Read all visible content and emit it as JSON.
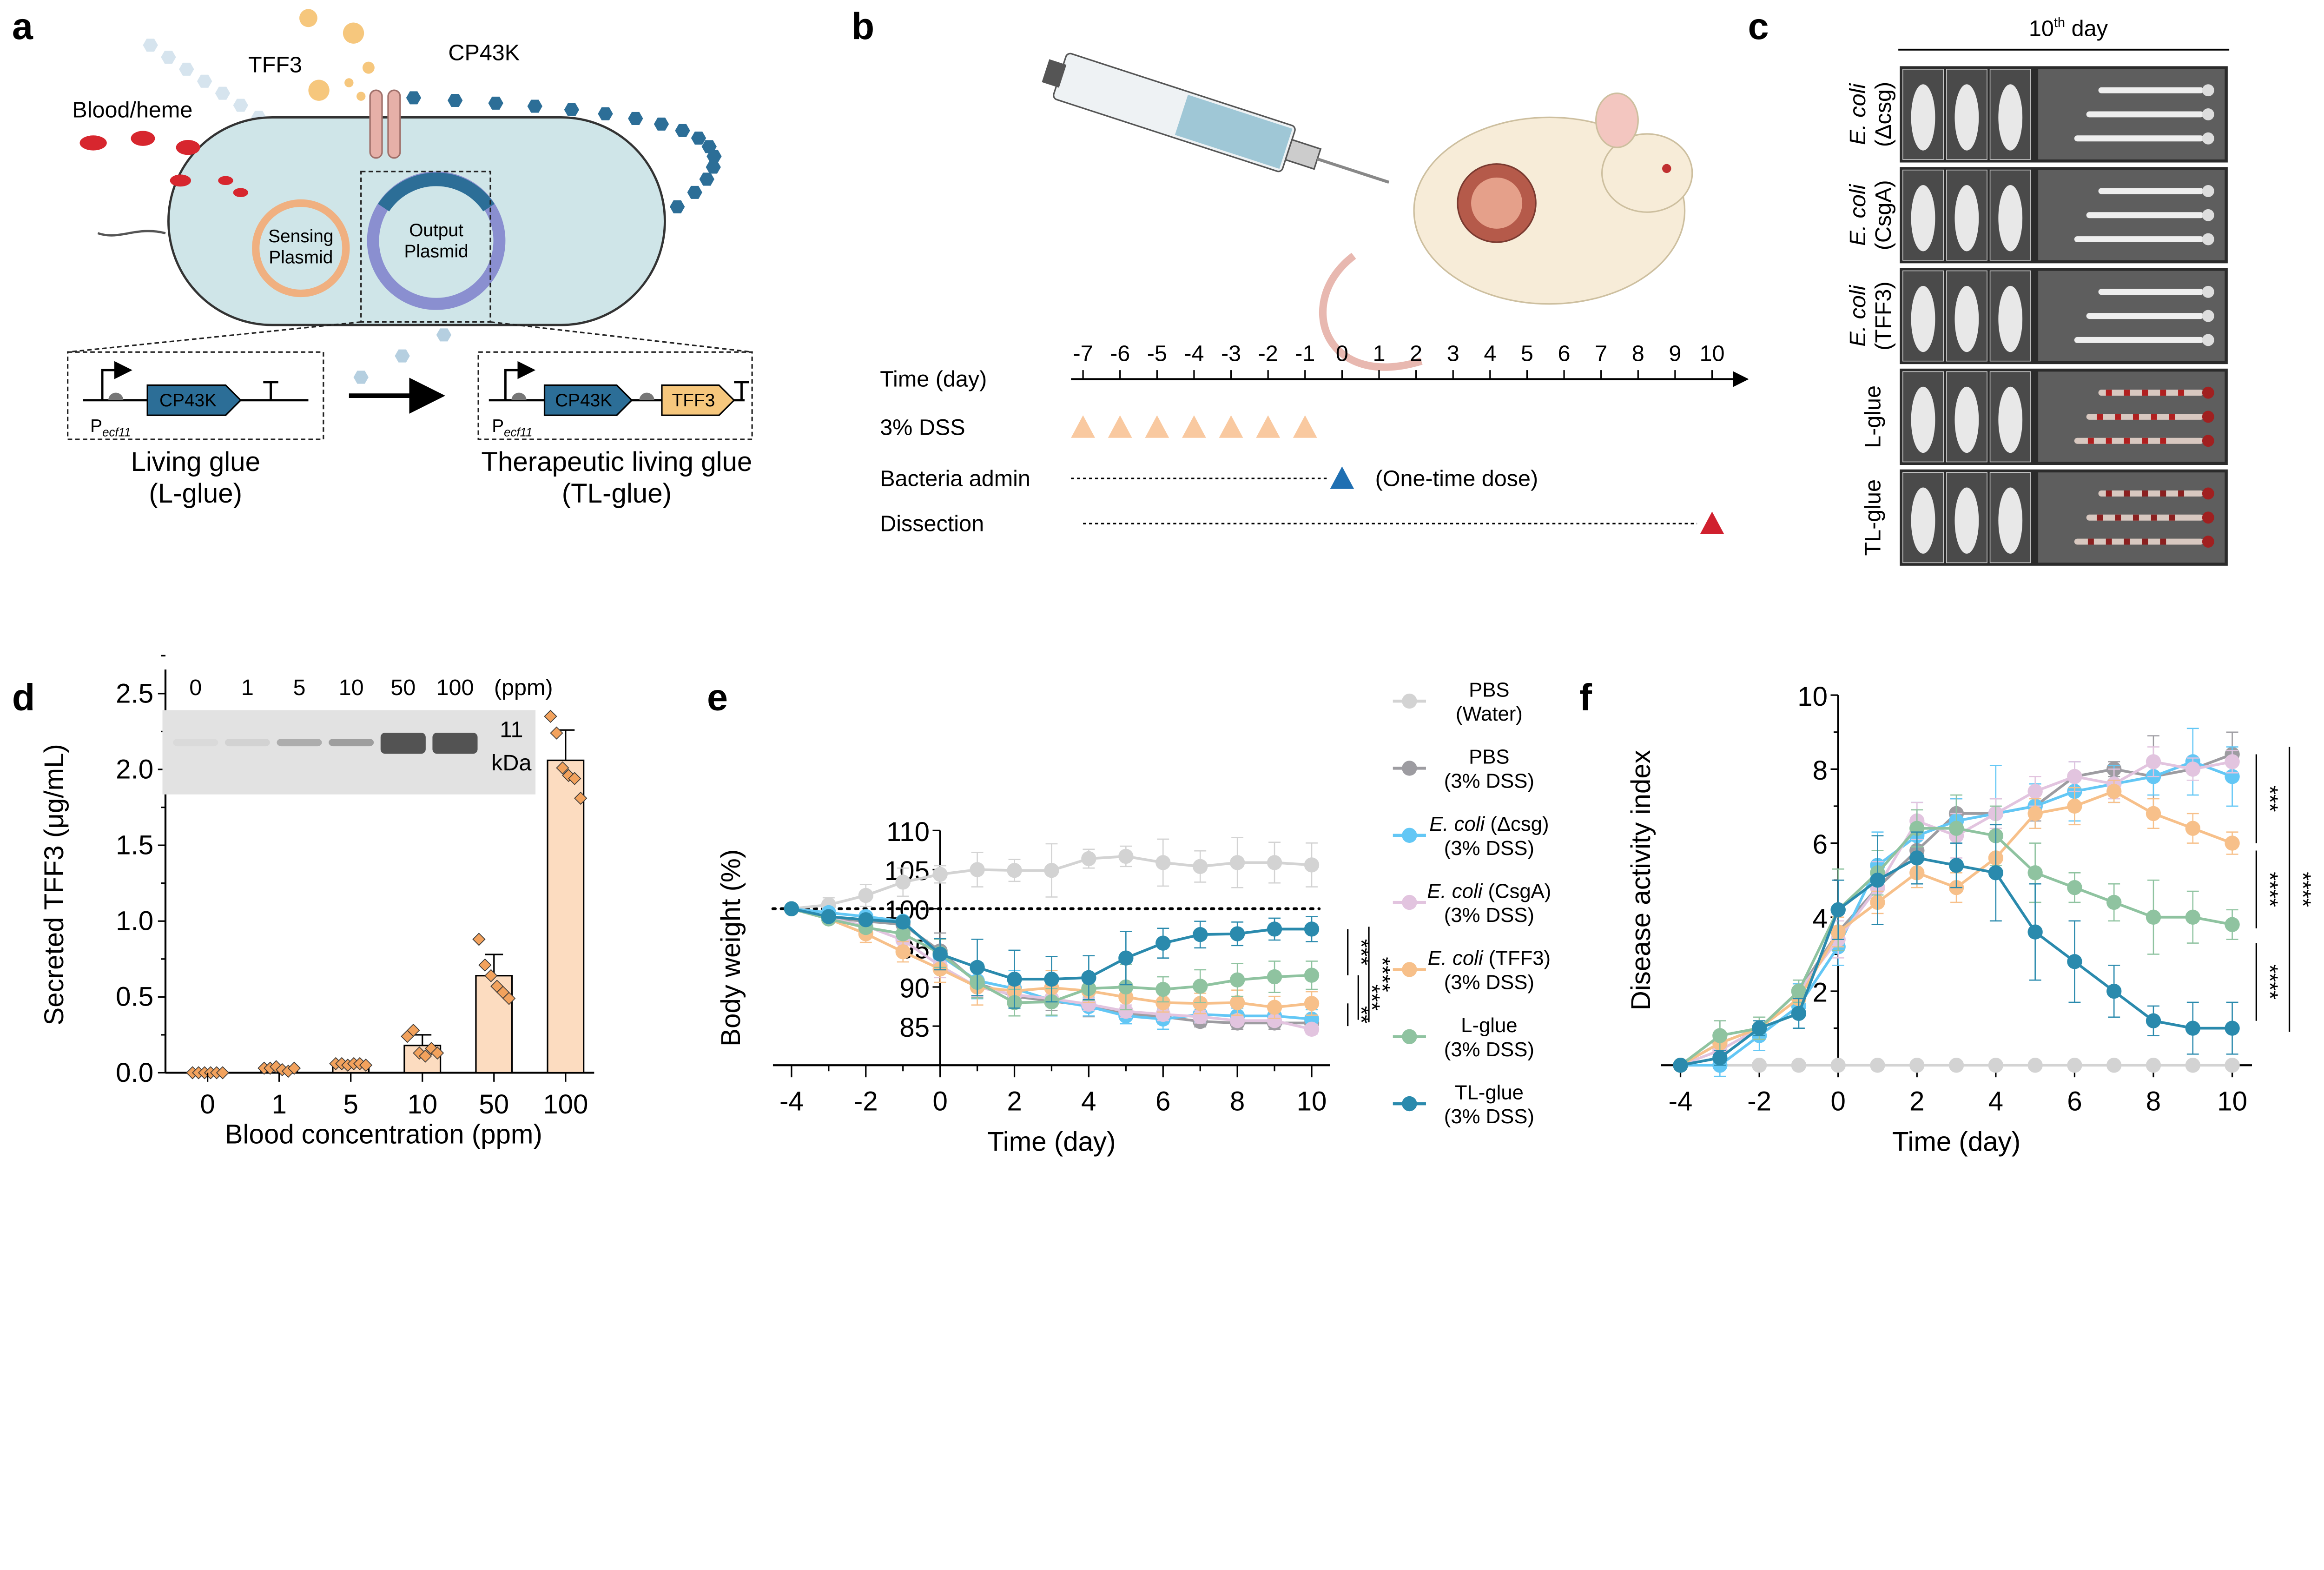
{
  "panels": {
    "a": "a",
    "b": "b",
    "c": "c",
    "d": "d",
    "e": "e",
    "f": "f"
  },
  "panel_a": {
    "tff3": "TFF3",
    "blood": "Blood/heme",
    "cp43k": "CP43K",
    "sensing": [
      "Sensing",
      "Plasmid"
    ],
    "output": [
      "Output",
      "Plasmid"
    ],
    "promoter": "P",
    "promoter_sub": "ecf11",
    "gene_cp43k": "CP43K",
    "gene_tff3": "TFF3",
    "left_caption": [
      "Living glue",
      "(L-glue)"
    ],
    "right_caption": [
      "Therapeutic living glue",
      "(TL-glue)"
    ],
    "colors": {
      "cell": "#cfe5e8",
      "cp43k": "#2c6e97",
      "tff3": "#f6c77d",
      "heme": "#d7262e"
    }
  },
  "panel_b": {
    "time_label": "Time (day)",
    "days": [
      "-7",
      "-6",
      "-5",
      "-4",
      "-3",
      "-2",
      "-1",
      "0",
      "1",
      "2",
      "3",
      "4",
      "5",
      "6",
      "7",
      "8",
      "9",
      "10"
    ],
    "rows": [
      {
        "label": "3% DSS",
        "days": [
          -7,
          -6,
          -5,
          -4,
          -3,
          -2,
          -1
        ],
        "color": "#f9c9a0"
      },
      {
        "label": "Bacteria admin",
        "days": [
          0
        ],
        "color": "#1f6fb2",
        "note": "(One-time dose)"
      },
      {
        "label": "Dissection",
        "days": [
          10
        ],
        "color": "#d0202e"
      }
    ]
  },
  "panel_c": {
    "title_main": "10",
    "title_sup": "th",
    "title_rest": " day",
    "rows": [
      {
        "italic": "E. coli",
        "rest": "(Δcsg)"
      },
      {
        "italic": "E. coli",
        "rest": "(CsgA)"
      },
      {
        "italic": "E. coli",
        "rest": "(TFF3)"
      },
      {
        "italic": "",
        "rest": "L-glue"
      },
      {
        "italic": "",
        "rest": "TL-glue"
      }
    ]
  },
  "chart_data": [
    {
      "id": "d",
      "type": "bar",
      "categories": [
        "0",
        "1",
        "5",
        "10",
        "50",
        "100"
      ],
      "values": [
        0.0,
        0.02,
        0.06,
        0.18,
        0.64,
        2.06
      ],
      "error_top": [
        0.0,
        0.02,
        0.06,
        0.25,
        0.78,
        2.26
      ],
      "points": [
        [
          0,
          0,
          0,
          0,
          0,
          0
        ],
        [
          0.03,
          0.03,
          0.04,
          0.02,
          0.01,
          0.03
        ],
        [
          0.06,
          0.06,
          0.05,
          0.06,
          0.06,
          0.05
        ],
        [
          0.24,
          0.28,
          0.13,
          0.11,
          0.16,
          0.13
        ],
        [
          0.88,
          0.71,
          0.64,
          0.57,
          0.53,
          0.49
        ],
        [
          2.35,
          2.24,
          2.01,
          1.96,
          1.94,
          1.81
        ]
      ],
      "xlabel": "Blood concentration (ppm)",
      "ylabel": "Secreted TFF3 (μg/mL)",
      "ylim": [
        0,
        2.5
      ],
      "yticks": [
        "0.0",
        "0.5",
        "1.0",
        "1.5",
        "2.0",
        "2.5"
      ],
      "bar_color": "#fcdcc0",
      "point_color": "#f2a25d",
      "inset": {
        "lanes": [
          "0",
          "1",
          "5",
          "10",
          "50",
          "100"
        ],
        "unit": "(ppm)",
        "marker": [
          "11",
          "kDa"
        ],
        "band_intensity": [
          0.05,
          0.1,
          0.35,
          0.45,
          0.95,
          0.95
        ]
      }
    },
    {
      "id": "e",
      "type": "line",
      "x": [
        -4,
        -3,
        -2,
        -1,
        0,
        1,
        2,
        3,
        4,
        5,
        6,
        7,
        8,
        9,
        10
      ],
      "xticks": [
        "-4",
        "-2",
        "0",
        "2",
        "4",
        "6",
        "8",
        "10"
      ],
      "yticks": [
        "85",
        "90",
        "95",
        "100",
        "105",
        "110"
      ],
      "ylim": [
        80,
        110
      ],
      "reference_line": 100,
      "xlabel": "Time (day)",
      "ylabel": "Body weight (%)",
      "legend_placement": "right",
      "series": [
        {
          "name": [
            "PBS",
            "(Water)"
          ],
          "color": "#d3d3d3",
          "values": [
            100,
            100.5,
            101.7,
            103.4,
            104.4,
            105,
            104.9,
            104.9,
            106.4,
            106.7,
            105.9,
            105.4,
            105.9,
            105.9,
            105.6
          ],
          "err": [
            0,
            0.9,
            1.4,
            1.8,
            1.1,
            2.2,
            1.4,
            3.4,
            1.2,
            1.3,
            3.0,
            2.0,
            3.2,
            2.6,
            2.8
          ]
        },
        {
          "name": [
            "PBS",
            "(3% DSS)"
          ],
          "color": "#9d9ca1",
          "values": [
            100,
            98.8,
            98.4,
            98,
            94.6,
            90.5,
            88.8,
            88.2,
            87.6,
            86.6,
            86.2,
            85.6,
            85.4,
            85.4,
            85.4
          ],
          "err": [
            0,
            0.6,
            0.6,
            0.5,
            2.3,
            1.8,
            1.2,
            1.2,
            1.4,
            0.8,
            0.9,
            0.7,
            0.8,
            0.8,
            0.9
          ]
        },
        {
          "name": [
            "E. coli (Δcsg)",
            "(3% DSS)"
          ],
          "italic": "E. coli",
          "color": "#63c7f5",
          "values": [
            100,
            99.5,
            99,
            98.4,
            94,
            90.8,
            89.8,
            88.3,
            87.5,
            86.3,
            85.9,
            86.5,
            86.3,
            86.3,
            85.9
          ],
          "err": [
            0,
            0.5,
            0.5,
            0.5,
            2.2,
            2.3,
            2.3,
            2.0,
            1.2,
            1.0,
            1.3,
            1.0,
            1.0,
            1.0,
            1.2
          ]
        },
        {
          "name": [
            "E. coli (CsgA)",
            "(3% DSS)"
          ],
          "italic": "E. coli",
          "color": "#e2c4df",
          "values": [
            100,
            98.8,
            97.8,
            96,
            92.7,
            90,
            89,
            88.5,
            87.8,
            86.9,
            86.5,
            86.2,
            85.7,
            85.7,
            84.6
          ],
          "err": [
            0,
            0.5,
            0.8,
            1.0,
            1.5,
            1.2,
            1.2,
            1.0,
            0.8,
            0.8,
            0.8,
            0.8,
            0.6,
            0.6,
            0.6
          ]
        },
        {
          "name": [
            "E. coli (TFF3)",
            "(3% DSS)"
          ],
          "italic": "E. coli",
          "color": "#f7c08a",
          "values": [
            100,
            98.7,
            96.8,
            94.5,
            92.3,
            90,
            89.5,
            89.9,
            89.5,
            88.7,
            88,
            87.9,
            88,
            87.4,
            87.9
          ],
          "err": [
            0,
            0.6,
            1.1,
            1.3,
            1.7,
            2.3,
            1.5,
            2.2,
            1.5,
            1.6,
            1.2,
            1.3,
            1.6,
            1.4,
            1.5
          ]
        },
        {
          "name": [
            "L-glue",
            "(3% DSS)"
          ],
          "color": "#8fc3a0",
          "values": [
            100,
            98.7,
            97.6,
            96.8,
            94.3,
            90.6,
            88,
            88.1,
            89.8,
            90,
            89.7,
            90.1,
            90.9,
            91.3,
            91.5
          ],
          "err": [
            0,
            0.5,
            0.6,
            0.6,
            1.8,
            2.0,
            1.7,
            1.7,
            1.5,
            2.9,
            1.6,
            2.1,
            2.1,
            2.0,
            1.8
          ]
        },
        {
          "name": [
            "TL-glue",
            "(3% DSS)"
          ],
          "color": "#2a8aad",
          "values": [
            100,
            99,
            98.6,
            98.3,
            94.2,
            92.5,
            91,
            91,
            91.2,
            93.7,
            95.6,
            96.7,
            96.8,
            97.4,
            97.4
          ],
          "err": [
            0,
            0.5,
            0.5,
            0.5,
            2.0,
            3.6,
            3.7,
            2.9,
            2.8,
            3.4,
            1.9,
            1.7,
            1.5,
            1.4,
            1.6
          ]
        }
      ],
      "significance": [
        {
          "label": "***",
          "from": 97.4,
          "to": 91.5
        },
        {
          "label": "**",
          "from": 87.9,
          "to": 85.0
        },
        {
          "label": "***",
          "from": 91.5,
          "to": 85.8
        },
        {
          "label": "****",
          "from": 97.7,
          "to": 85.5
        }
      ]
    },
    {
      "id": "f",
      "type": "line",
      "x": [
        -4,
        -3,
        -2,
        -1,
        0,
        1,
        2,
        3,
        4,
        5,
        6,
        7,
        8,
        9,
        10
      ],
      "xticks": [
        "-4",
        "-2",
        "0",
        "2",
        "4",
        "6",
        "8",
        "10"
      ],
      "yticks": [
        "2",
        "4",
        "6",
        "8",
        "10"
      ],
      "ylim": [
        0,
        10
      ],
      "xlabel": "Time (day)",
      "ylabel": "Disease activity index",
      "series": [
        {
          "name": [
            "PBS",
            "(Water)"
          ],
          "color": "#d3d3d3",
          "values": [
            0,
            0,
            0,
            0,
            0,
            0,
            0,
            0,
            0,
            0,
            0,
            0,
            0,
            0,
            0
          ],
          "err": [
            0,
            0,
            0,
            0,
            0,
            0,
            0,
            0,
            0,
            0,
            0,
            0,
            0,
            0,
            0
          ]
        },
        {
          "name": [
            "PBS",
            "(3% DSS)"
          ],
          "color": "#9d9ca1",
          "values": [
            0,
            0.6,
            1,
            2,
            3.6,
            4.8,
            5.8,
            6.8,
            6.8,
            7,
            7.8,
            8,
            7.8,
            8,
            8.4
          ],
          "err": [
            0,
            0.6,
            0.3,
            0.2,
            0.5,
            0.5,
            0.6,
            0.4,
            0.4,
            0.4,
            0.4,
            0.2,
            1.1,
            0.3,
            0.6
          ]
        },
        {
          "name": [
            "E. coli (Δcsg)",
            "(3% DSS)"
          ],
          "color": "#63c7f5",
          "values": [
            0,
            0,
            0.8,
            1.6,
            3.2,
            5.4,
            6.2,
            6.6,
            6.8,
            7,
            7.4,
            7.6,
            7.8,
            8.2,
            7.8
          ],
          "err": [
            0,
            0.3,
            0.4,
            0.6,
            0.5,
            0.9,
            0.9,
            0.6,
            1.3,
            0.6,
            0.8,
            0.5,
            0.5,
            0.9,
            0.8
          ]
        },
        {
          "name": [
            "E. coli (CsgA)",
            "(3% DSS)"
          ],
          "color": "#e2c4df",
          "values": [
            0,
            0.4,
            1,
            2,
            3.4,
            4.8,
            6.6,
            6.2,
            6.8,
            7.4,
            7.8,
            7.6,
            8.2,
            8,
            8.2
          ],
          "err": [
            0,
            0.4,
            0.3,
            0.3,
            0.5,
            0.7,
            0.5,
            0.6,
            0.4,
            0.4,
            0.4,
            0.4,
            0.4,
            0.3,
            0.3
          ]
        },
        {
          "name": [
            "E. coli (TFF3)",
            "(3% DSS)"
          ],
          "color": "#f7c08a",
          "values": [
            0,
            0.6,
            1,
            1.8,
            3.6,
            4.4,
            5.2,
            4.8,
            5.6,
            6.8,
            7,
            7.4,
            6.8,
            6.4,
            6
          ],
          "err": [
            0,
            0.3,
            0.3,
            0.3,
            0.4,
            0.3,
            0.4,
            0.4,
            0.5,
            0.4,
            0.5,
            0.3,
            0.4,
            0.4,
            0.3
          ]
        },
        {
          "name": [
            "L-glue",
            "(3% DSS)"
          ],
          "color": "#8fc3a0",
          "values": [
            0,
            0.8,
            1,
            2,
            4.2,
            5.2,
            6.4,
            6.4,
            6.2,
            5.2,
            4.8,
            4.4,
            4,
            4,
            3.8
          ],
          "err": [
            0,
            0.4,
            0.3,
            0.3,
            1.1,
            0.6,
            0.5,
            0.9,
            0.8,
            0.8,
            0.4,
            0.5,
            1.0,
            0.7,
            0.4
          ]
        },
        {
          "name": [
            "TL-glue",
            "(3% DSS)"
          ],
          "color": "#2a8aad",
          "values": [
            0,
            0.2,
            1,
            1.4,
            4.2,
            5,
            5.6,
            5.4,
            5.2,
            3.6,
            2.8,
            2,
            1.2,
            1,
            1
          ],
          "err": [
            0,
            0.2,
            0.2,
            0.4,
            0.8,
            1.2,
            0.7,
            0.6,
            1.3,
            1.3,
            1.1,
            0.7,
            0.4,
            0.7,
            0.7
          ]
        }
      ],
      "significance": [
        {
          "label": "***",
          "from": 8.4,
          "to": 6.0
        },
        {
          "label": "****",
          "from": 5.8,
          "to": 3.7
        },
        {
          "label": "****",
          "from": 3.3,
          "to": 1.2
        },
        {
          "label": "****",
          "from": 8.6,
          "to": 0.9
        }
      ]
    }
  ]
}
